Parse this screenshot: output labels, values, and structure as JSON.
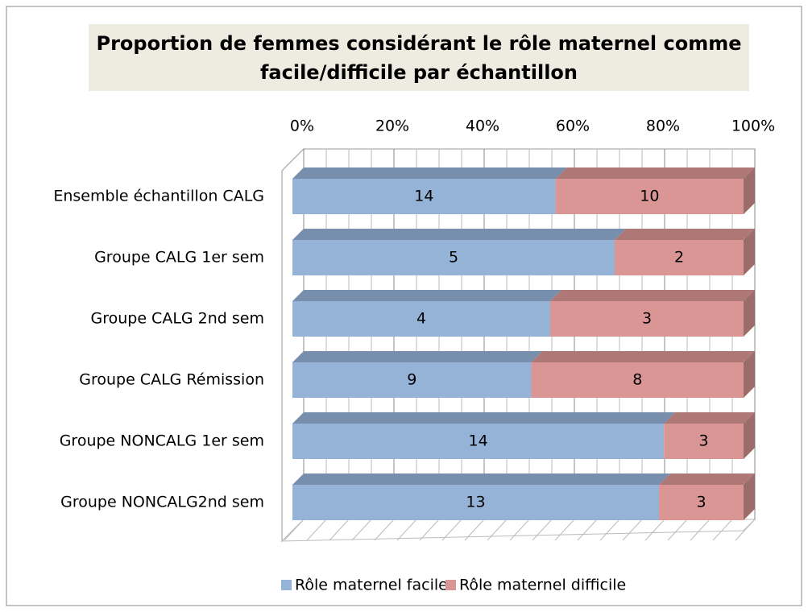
{
  "chart_data": {
    "type": "bar",
    "orientation": "horizontal",
    "stacked": "percent",
    "title": "Proportion de femmes considérant le rôle maternel comme facile/difficile par échantillon",
    "categories": [
      "Ensemble échantillon CALG",
      "Groupe CALG 1er sem",
      "Groupe CALG 2nd sem",
      "Groupe CALG Rémission",
      "Groupe NONCALG 1er sem",
      "Groupe NONCALG2nd sem"
    ],
    "series": [
      {
        "name": "Rôle maternel facile",
        "color": "#95b3d7",
        "values": [
          14,
          5,
          4,
          9,
          14,
          13
        ]
      },
      {
        "name": "Rôle maternel difficile",
        "color": "#d99694",
        "values": [
          10,
          2,
          3,
          8,
          3,
          3
        ]
      }
    ],
    "xlim": [
      0,
      100
    ],
    "xticks": [
      {
        "value": 0,
        "label": "0%"
      },
      {
        "value": 20,
        "label": "20%"
      },
      {
        "value": 40,
        "label": "40%"
      },
      {
        "value": 60,
        "label": "60%"
      },
      {
        "value": 80,
        "label": "80%"
      },
      {
        "value": 100,
        "label": "100%"
      }
    ],
    "grid": true,
    "legend": "bottom"
  }
}
